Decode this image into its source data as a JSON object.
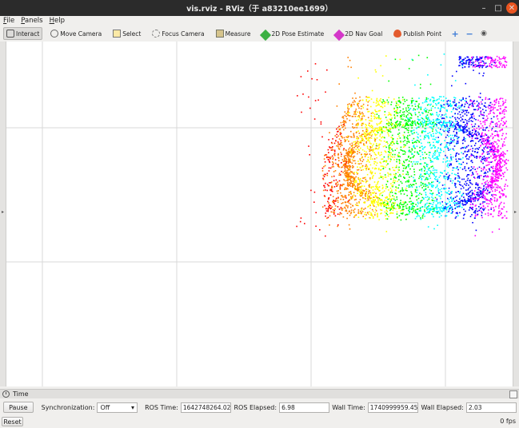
{
  "window": {
    "title": "vis.rviz - RViz（于 a83210ee1699）",
    "minimize_glyph": "–",
    "maximize_glyph": "□",
    "close_glyph": "✕"
  },
  "menu": {
    "items": [
      {
        "label": "File",
        "underline": "F",
        "rest": "ile"
      },
      {
        "label": "Panels",
        "underline": "P",
        "rest": "anels"
      },
      {
        "label": "Help",
        "underline": "H",
        "rest": "elp"
      }
    ]
  },
  "toolbar": {
    "interact": "Interact",
    "move_camera": "Move Camera",
    "select": "Select",
    "focus_camera": "Focus Camera",
    "measure": "Measure",
    "pose_estimate": "2D Pose Estimate",
    "nav_goal": "2D Nav Goal",
    "publish_point": "Publish Point",
    "add_glyph": "+",
    "remove_glyph": "−",
    "eye_glyph": "◉"
  },
  "panels": {
    "left_arrow": "▸",
    "right_arrow": "▸"
  },
  "time": {
    "header": "Time",
    "pause": "Pause",
    "sync_label": "Synchronization:",
    "sync_value": "Off",
    "ros_time_label": "ROS Time:",
    "ros_time": "1642748264.02",
    "ros_elapsed_label": "ROS Elapsed:",
    "ros_elapsed": "6.98",
    "wall_time_label": "Wall Time:",
    "wall_time": "1740999959.45",
    "wall_elapsed_label": "Wall Elapsed:",
    "wall_elapsed": "2.03",
    "reset": "Reset",
    "fps": "0 fps"
  },
  "colors": {
    "pointcloud": [
      "#ff0000",
      "#ff7f00",
      "#ffff00",
      "#00ff00",
      "#00ffff",
      "#0000ff",
      "#ff00ff"
    ]
  }
}
